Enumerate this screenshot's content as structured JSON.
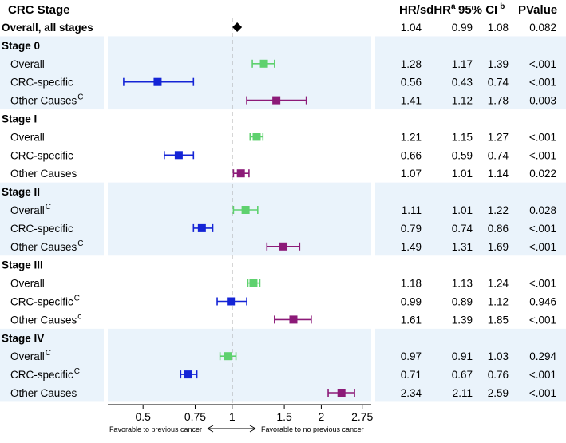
{
  "headers": {
    "label": "CRC Stage",
    "hr": "HR/sdHR",
    "hr_sup": "a",
    "ci": "95% CI",
    "ci_sup": "b",
    "p": "PValue"
  },
  "favorable_left": "Favorable to previous cancer",
  "favorable_right": "Favorable to no previous cancer",
  "colors": {
    "overall": "#5ed16e",
    "crc": "#1424d6",
    "other": "#8c1a78",
    "diamond": "#000000",
    "band": "#eaf3fb",
    "refline": "#9a9a9a"
  },
  "chart_data": {
    "type": "forest",
    "xscale": "log",
    "xlim": [
      0.38,
      2.95
    ],
    "xticks": [
      0.5,
      0.75,
      1,
      1.5,
      2,
      2.75
    ],
    "xtick_labels": [
      "0.5",
      "0.75",
      "1",
      "1.5",
      "2",
      "2.75"
    ],
    "reference_line": 1,
    "rows": [
      {
        "label": "Overall, all stages",
        "kind": "total",
        "hr": 1.04,
        "lo": 0.99,
        "hi": 1.08,
        "hr_text": "1.04",
        "lo_text": "0.99",
        "hi_text": "1.08",
        "p": "0.082",
        "sup": ""
      },
      {
        "label": "Stage 0",
        "kind": "group"
      },
      {
        "label": "Overall",
        "kind": "overall",
        "hr": 1.28,
        "lo": 1.17,
        "hi": 1.39,
        "hr_text": "1.28",
        "lo_text": "1.17",
        "hi_text": "1.39",
        "p": "<.001",
        "sup": ""
      },
      {
        "label": "CRC-specific",
        "kind": "crc",
        "hr": 0.56,
        "lo": 0.43,
        "hi": 0.74,
        "hr_text": "0.56",
        "lo_text": "0.43",
        "hi_text": "0.74",
        "p": "<.001",
        "sup": ""
      },
      {
        "label": "Other Causes",
        "kind": "other",
        "hr": 1.41,
        "lo": 1.12,
        "hi": 1.78,
        "hr_text": "1.41",
        "lo_text": "1.12",
        "hi_text": "1.78",
        "p": "0.003",
        "sup": "C"
      },
      {
        "label": "Stage I",
        "kind": "group"
      },
      {
        "label": "Overall",
        "kind": "overall",
        "hr": 1.21,
        "lo": 1.15,
        "hi": 1.27,
        "hr_text": "1.21",
        "lo_text": "1.15",
        "hi_text": "1.27",
        "p": "<.001",
        "sup": ""
      },
      {
        "label": "CRC-specific",
        "kind": "crc",
        "hr": 0.66,
        "lo": 0.59,
        "hi": 0.74,
        "hr_text": "0.66",
        "lo_text": "0.59",
        "hi_text": "0.74",
        "p": "<.001",
        "sup": ""
      },
      {
        "label": "Other Causes",
        "kind": "other",
        "hr": 1.07,
        "lo": 1.01,
        "hi": 1.14,
        "hr_text": "1.07",
        "lo_text": "1.01",
        "hi_text": "1.14",
        "p": "0.022",
        "sup": ""
      },
      {
        "label": "Stage II",
        "kind": "group"
      },
      {
        "label": "Overall",
        "kind": "overall",
        "hr": 1.11,
        "lo": 1.01,
        "hi": 1.22,
        "hr_text": "1.11",
        "lo_text": "1.01",
        "hi_text": "1.22",
        "p": "0.028",
        "sup": "C"
      },
      {
        "label": "CRC-specific",
        "kind": "crc",
        "hr": 0.79,
        "lo": 0.74,
        "hi": 0.86,
        "hr_text": "0.79",
        "lo_text": "0.74",
        "hi_text": "0.86",
        "p": "<.001",
        "sup": ""
      },
      {
        "label": "Other Causes",
        "kind": "other",
        "hr": 1.49,
        "lo": 1.31,
        "hi": 1.69,
        "hr_text": "1.49",
        "lo_text": "1.31",
        "hi_text": "1.69",
        "p": "<.001",
        "sup": "C"
      },
      {
        "label": "Stage III",
        "kind": "group"
      },
      {
        "label": "Overall",
        "kind": "overall",
        "hr": 1.18,
        "lo": 1.13,
        "hi": 1.24,
        "hr_text": "1.18",
        "lo_text": "1.13",
        "hi_text": "1.24",
        "p": "<.001",
        "sup": ""
      },
      {
        "label": "CRC-specific",
        "kind": "crc",
        "hr": 0.99,
        "lo": 0.89,
        "hi": 1.12,
        "hr_text": "0.99",
        "lo_text": "0.89",
        "hi_text": "1.12",
        "p": "0.946",
        "sup": "C"
      },
      {
        "label": "Other Causes",
        "kind": "other",
        "hr": 1.61,
        "lo": 1.39,
        "hi": 1.85,
        "hr_text": "1.61",
        "lo_text": "1.39",
        "hi_text": "1.85",
        "p": "<.001",
        "sup": "c"
      },
      {
        "label": "Stage IV",
        "kind": "group"
      },
      {
        "label": "Overall",
        "kind": "overall",
        "hr": 0.97,
        "lo": 0.91,
        "hi": 1.03,
        "hr_text": "0.97",
        "lo_text": "0.91",
        "hi_text": "1.03",
        "p": "0.294",
        "sup": "C"
      },
      {
        "label": "CRC-specific",
        "kind": "crc",
        "hr": 0.71,
        "lo": 0.67,
        "hi": 0.76,
        "hr_text": "0.71",
        "lo_text": "0.67",
        "hi_text": "0.76",
        "p": "<.001",
        "sup": "C"
      },
      {
        "label": "Other Causes",
        "kind": "other",
        "hr": 2.34,
        "lo": 2.11,
        "hi": 2.59,
        "hr_text": "2.34",
        "lo_text": "2.11",
        "hi_text": "2.59",
        "p": "<.001",
        "sup": ""
      }
    ]
  }
}
